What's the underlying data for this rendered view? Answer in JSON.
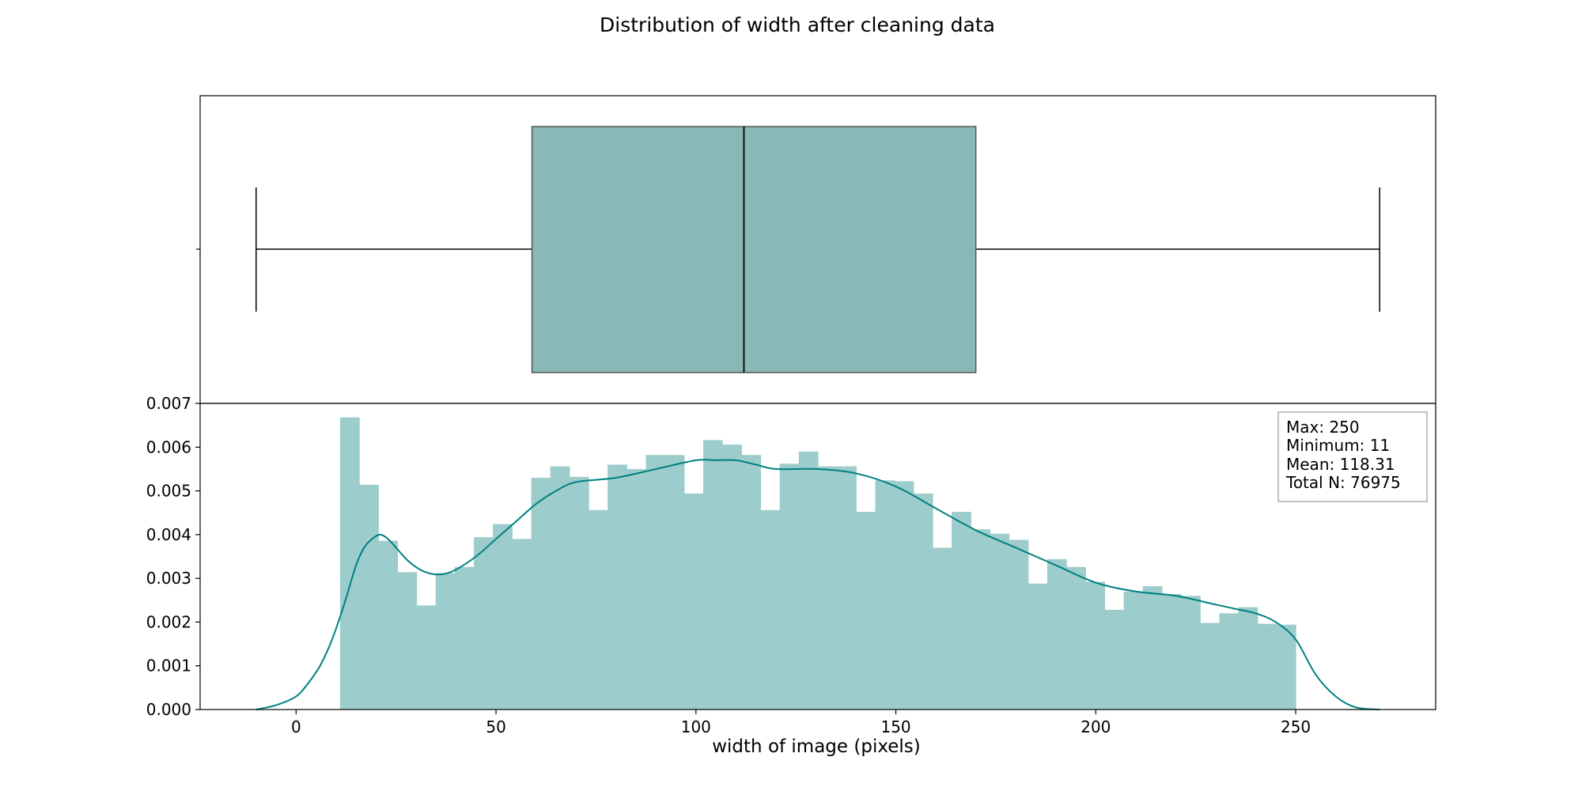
{
  "chart_data": {
    "type": "boxplot+histogram",
    "title": "Distribution of width after cleaning data",
    "xlabel": "width of image (pixels)",
    "ylabel": "",
    "xlim": [
      -24,
      285
    ],
    "ylim": [
      0,
      0.007
    ],
    "x_ticks": [
      0,
      50,
      100,
      150,
      200,
      250
    ],
    "y_ticks": [
      0.0,
      0.001,
      0.002,
      0.003,
      0.004,
      0.005,
      0.006,
      0.007
    ],
    "colors": {
      "bars": "#9ccccc",
      "box": "#89b8b7",
      "kde": "#008080",
      "box_edge": "#555555"
    },
    "boxplot": {
      "whisker_low": -10,
      "q1": 59,
      "median": 112,
      "q3": 170,
      "whisker_high": 271
    },
    "histogram": {
      "bin_start": 11,
      "bin_width": 4.78,
      "densities": [
        0.00668,
        0.00514,
        0.00386,
        0.00314,
        0.00238,
        0.00312,
        0.00326,
        0.00394,
        0.00424,
        0.0039,
        0.0053,
        0.00556,
        0.00532,
        0.00456,
        0.0056,
        0.0055,
        0.00582,
        0.00582,
        0.00494,
        0.00616,
        0.00606,
        0.00582,
        0.00456,
        0.00562,
        0.0059,
        0.00556,
        0.00556,
        0.00452,
        0.00524,
        0.00522,
        0.00494,
        0.0037,
        0.00452,
        0.00412,
        0.00402,
        0.00388,
        0.00288,
        0.00344,
        0.00326,
        0.00292,
        0.00228,
        0.0027,
        0.00282,
        0.00264,
        0.0026,
        0.00198,
        0.0022,
        0.00234,
        0.00196,
        0.00194
      ]
    },
    "kde": {
      "x": [
        -10,
        -5,
        0,
        3,
        6,
        9,
        12,
        15,
        17,
        19,
        21,
        23,
        25,
        28,
        31,
        34,
        37,
        40,
        45,
        50,
        55,
        60,
        65,
        70,
        80,
        90,
        100,
        105,
        110,
        115,
        120,
        130,
        140,
        150,
        160,
        170,
        180,
        190,
        200,
        210,
        220,
        230,
        235,
        240,
        245,
        250,
        255,
        260,
        265,
        271
      ],
      "y": [
        0.0,
        0.0001,
        0.0003,
        0.0006,
        0.001,
        0.0016,
        0.0024,
        0.0033,
        0.0037,
        0.0039,
        0.004,
        0.0039,
        0.0037,
        0.0034,
        0.0032,
        0.0031,
        0.0031,
        0.0032,
        0.0035,
        0.0039,
        0.0043,
        0.0047,
        0.005,
        0.0052,
        0.0053,
        0.0055,
        0.0057,
        0.0057,
        0.0057,
        0.0056,
        0.0055,
        0.0055,
        0.0054,
        0.0051,
        0.0046,
        0.0041,
        0.0037,
        0.0033,
        0.0029,
        0.0027,
        0.0026,
        0.0024,
        0.0023,
        0.0022,
        0.002,
        0.0016,
        0.0008,
        0.0003,
        5e-05,
        0.0
      ]
    },
    "stats": [
      "Max: 250",
      "Minimum: 11",
      "Mean: 118.31",
      "Total N: 76975"
    ]
  }
}
